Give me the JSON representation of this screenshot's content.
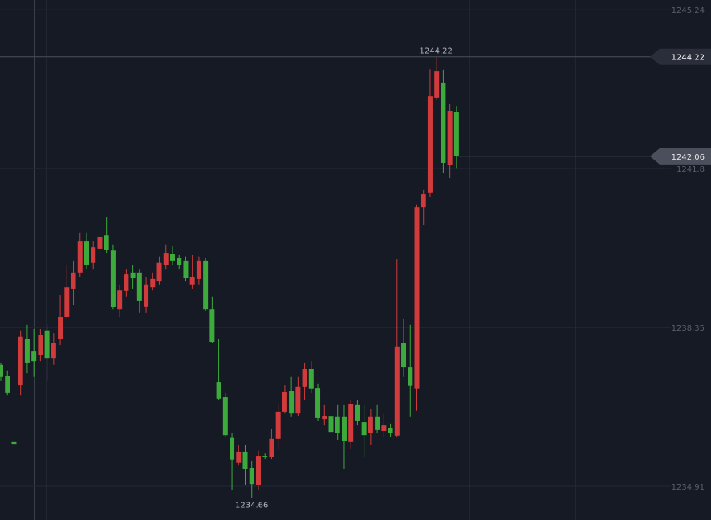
{
  "chart_data": {
    "type": "candlestick",
    "ylim": [
      1234.18,
      1245.45
    ],
    "yticks": [
      1234.91,
      1238.35,
      1241.8,
      1245.24
    ],
    "grid": true,
    "up_color": "#d23b3b",
    "down_color": "#3cab3c",
    "open": [
      1237.54,
      1237.31,
      1235.87,
      1237.1,
      1238.11,
      1237.83,
      1237.76,
      1238.29,
      1237.69,
      1238.11,
      1238.58,
      1239.19,
      1239.54,
      1240.23,
      1239.75,
      1240.06,
      1240.35,
      1240.02,
      1238.75,
      1239.14,
      1239.54,
      1239.54,
      1238.81,
      1239.22,
      1239.36,
      1239.71,
      1239.95,
      1239.85,
      1239.8,
      1239.28,
      1239.4,
      1239.8,
      1238.75,
      1237.17,
      1236.84,
      1235.96,
      1235.42,
      1235.66,
      1235.31,
      1234.93,
      1235.57,
      1235.54,
      1235.94,
      1236.53,
      1236.98,
      1236.49,
      1237.07,
      1237.45,
      1237.03,
      1236.37,
      1236.42,
      1236.41,
      1236.41,
      1235.87,
      1236.67,
      1236.3,
      1236.06,
      1236.41,
      1236.11,
      1236.18,
      1236.01,
      1238.01,
      1237.5,
      1237.02,
      1240.96,
      1241.28,
      1243.33,
      1243.66,
      1241.88,
      1243.02
    ],
    "high": [
      1237.59,
      1237.42,
      1235.87,
      1238.29,
      1238.41,
      1238.32,
      1238.32,
      1238.41,
      1238.23,
      1239.05,
      1239.71,
      1239.8,
      1240.41,
      1240.41,
      1240.23,
      1240.41,
      1240.75,
      1240.15,
      1239.28,
      1239.62,
      1239.71,
      1239.62,
      1239.45,
      1239.54,
      1239.89,
      1240.15,
      1240.11,
      1239.92,
      1239.89,
      1239.92,
      1239.89,
      1239.85,
      1239.02,
      1238.11,
      1236.93,
      1236.06,
      1235.8,
      1235.8,
      1235.45,
      1235.68,
      1235.62,
      1236.15,
      1236.7,
      1237.1,
      1237.28,
      1237.28,
      1237.59,
      1237.62,
      1237.14,
      1236.67,
      1236.67,
      1236.67,
      1236.67,
      1236.79,
      1236.77,
      1236.67,
      1236.58,
      1236.67,
      1236.49,
      1236.27,
      1239.83,
      1238.53,
      1238.41,
      1241.02,
      1241.33,
      1243.95,
      1244.22,
      1243.94,
      1243.19,
      1243.15
    ],
    "low": [
      1237.19,
      1236.89,
      1235.83,
      1236.89,
      1237.36,
      1237.28,
      1237.62,
      1237.19,
      1237.54,
      1237.97,
      1238.53,
      1238.84,
      1239.45,
      1239.62,
      1239.62,
      1239.89,
      1239.97,
      1238.75,
      1238.58,
      1239.02,
      1239.19,
      1238.67,
      1238.67,
      1239.15,
      1239.28,
      1239.62,
      1239.71,
      1239.62,
      1239.36,
      1239.19,
      1239.28,
      1238.72,
      1238.01,
      1236.77,
      1235.97,
      1234.84,
      1235.36,
      1234.93,
      1234.66,
      1234.84,
      1235.5,
      1235.5,
      1235.71,
      1236.49,
      1236.41,
      1236.44,
      1236.77,
      1236.93,
      1236.32,
      1236.23,
      1235.97,
      1235.92,
      1235.28,
      1235.71,
      1236.23,
      1235.54,
      1235.8,
      1236.06,
      1235.97,
      1235.97,
      1235.97,
      1237.28,
      1236.41,
      1236.55,
      1240.58,
      1241.19,
      1243.28,
      1241.71,
      1241.59,
      1241.81
    ],
    "close": [
      1237.28,
      1236.93,
      1235.83,
      1238.15,
      1237.59,
      1237.62,
      1238.18,
      1237.69,
      1238.01,
      1238.58,
      1239.22,
      1239.54,
      1240.23,
      1239.71,
      1240.09,
      1240.32,
      1240.04,
      1238.79,
      1239.15,
      1239.5,
      1239.42,
      1238.93,
      1239.28,
      1239.4,
      1239.75,
      1239.97,
      1239.8,
      1239.71,
      1239.43,
      1239.45,
      1239.8,
      1238.75,
      1238.04,
      1236.81,
      1236.02,
      1235.49,
      1235.66,
      1235.29,
      1234.96,
      1235.57,
      1235.54,
      1235.94,
      1236.53,
      1236.96,
      1236.49,
      1237.07,
      1237.45,
      1237.02,
      1236.39,
      1236.44,
      1236.09,
      1236.06,
      1235.89,
      1236.7,
      1236.32,
      1236.02,
      1236.41,
      1236.13,
      1236.23,
      1236.06,
      1237.94,
      1237.5,
      1237.09,
      1240.96,
      1241.24,
      1243.36,
      1243.9,
      1241.92,
      1243.05,
      1242.06
    ]
  }
}
